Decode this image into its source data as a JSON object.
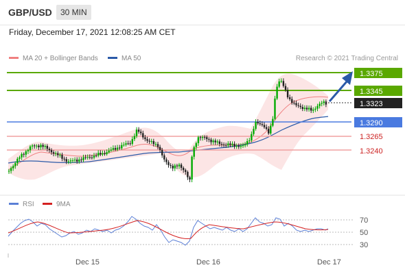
{
  "header": {
    "pair": "GBP/USD",
    "timeframe": "30 MIN"
  },
  "timestamp": "Friday, December 17, 2021 12:08:25 AM CET",
  "credit": "Research © 2021 Trading Central",
  "legend": [
    {
      "label": "MA 20 + Bollinger Bands",
      "color": "#f08080"
    },
    {
      "label": "MA 50",
      "color": "#2b5aa8"
    }
  ],
  "rsi_legend": [
    {
      "label": "RSI",
      "color": "#5b7fd6"
    },
    {
      "label": "9MA",
      "color": "#d42020"
    }
  ],
  "colors": {
    "up": "#00aa00",
    "resistance": "#5aa800",
    "support": "#f0a0a0",
    "pivot": "#4a7ae0"
  },
  "chart_data": {
    "type": "candlestick",
    "price_range": [
      1.317,
      1.3395
    ],
    "levels": [
      {
        "label": "1.3375",
        "value": 1.3375,
        "kind": "resistance"
      },
      {
        "label": "1.3345",
        "value": 1.3345,
        "kind": "resistance"
      },
      {
        "label": "1.3323",
        "value": 1.3323,
        "kind": "current"
      },
      {
        "label": "1.3290",
        "value": 1.329,
        "kind": "pivot"
      },
      {
        "label": "1.3265",
        "value": 1.3265,
        "kind": "support"
      },
      {
        "label": "1.3240",
        "value": 1.324,
        "kind": "support"
      }
    ],
    "x_ticks": [
      "Dec 15",
      "Dec 16",
      "Dec 17"
    ],
    "rsi": {
      "ylim": [
        20,
        80
      ],
      "ticks": [
        30,
        50,
        70
      ]
    }
  }
}
